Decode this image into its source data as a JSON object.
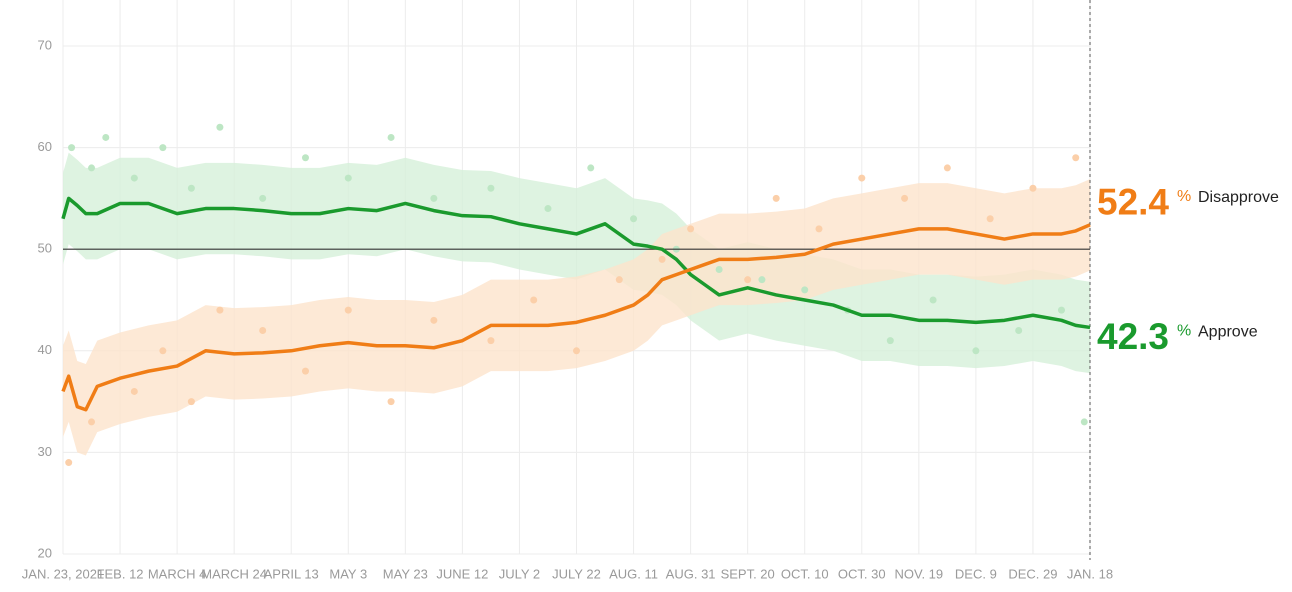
{
  "chart_data": {
    "type": "line",
    "x": [
      0,
      2,
      5,
      8,
      12,
      20,
      30,
      40,
      50,
      60,
      70,
      80,
      90,
      100,
      110,
      120,
      130,
      140,
      150,
      160,
      170,
      180,
      190,
      200,
      205,
      210,
      215,
      220,
      225,
      230,
      240,
      250,
      260,
      270,
      280,
      290,
      300,
      310,
      320,
      330,
      340,
      350,
      355,
      360
    ],
    "series": [
      {
        "name": "Approve",
        "color": "#1a9a2d",
        "band_color": "#d6f0da",
        "poll_color": "#bde6c4",
        "values": [
          53,
          55,
          54.3,
          53.5,
          53.5,
          54.5,
          54.5,
          53.5,
          54,
          54,
          53.8,
          53.5,
          53.5,
          54,
          53.8,
          54.5,
          53.8,
          53.3,
          53.2,
          52.5,
          52,
          51.5,
          52.5,
          50.5,
          50.3,
          50,
          49,
          47.5,
          46.5,
          45.5,
          46.2,
          45.5,
          45,
          44.5,
          43.5,
          43.5,
          43,
          43,
          42.8,
          43,
          43.5,
          43,
          42.5,
          42.3
        ],
        "upper": [
          57.5,
          59.5,
          58.8,
          58,
          58,
          59,
          59,
          58,
          58.5,
          58.5,
          58.3,
          58,
          58,
          58.5,
          58.3,
          59,
          58.3,
          57.8,
          57.7,
          57,
          56.5,
          56,
          57,
          55,
          54.8,
          54.5,
          53.5,
          52,
          51,
          50,
          50.7,
          50,
          49.5,
          49,
          48,
          48,
          47.5,
          47.5,
          47.3,
          47.5,
          48,
          47.5,
          47,
          46.8
        ],
        "lower": [
          48.5,
          50.5,
          49.8,
          49,
          49,
          50,
          50,
          49,
          49.5,
          49.5,
          49.3,
          49,
          49,
          49.5,
          49.3,
          50,
          49.3,
          48.8,
          48.7,
          48,
          47.5,
          47,
          48,
          46,
          45.8,
          45.5,
          44.5,
          43,
          42,
          41,
          41.7,
          41,
          40.5,
          40,
          39,
          39,
          38.5,
          38.5,
          38.3,
          38.5,
          39,
          38.5,
          38,
          37.8
        ],
        "polls": {
          "x": [
            3,
            10,
            15,
            25,
            35,
            45,
            55,
            70,
            85,
            100,
            115,
            130,
            150,
            170,
            185,
            200,
            215,
            230,
            245,
            260,
            275,
            290,
            305,
            320,
            335,
            350,
            358
          ],
          "values": [
            60,
            58,
            61,
            57,
            60,
            56,
            62,
            55,
            59,
            57,
            61,
            55,
            56,
            54,
            58,
            53,
            50,
            48,
            47,
            46,
            44,
            41,
            45,
            40,
            42,
            44,
            33
          ]
        }
      },
      {
        "name": "Disapprove",
        "color": "#f07d16",
        "band_color": "#fde3cc",
        "poll_color": "#fbcfa9",
        "values": [
          36,
          37.5,
          34.5,
          34.2,
          36.5,
          37.3,
          38,
          38.5,
          40,
          39.7,
          39.8,
          40,
          40.5,
          40.8,
          40.5,
          40.5,
          40.3,
          41,
          42.5,
          42.5,
          42.5,
          42.8,
          43.5,
          44.5,
          45.5,
          47,
          47.5,
          48,
          48.5,
          49,
          49,
          49.2,
          49.5,
          50.5,
          51,
          51.5,
          52,
          52,
          51.5,
          51,
          51.5,
          51.5,
          51.8,
          52.4
        ],
        "upper": [
          40.5,
          42,
          39,
          38.7,
          41,
          41.8,
          42.5,
          43,
          44.5,
          44.2,
          44.3,
          44.5,
          45,
          45.3,
          45,
          45,
          44.8,
          45.5,
          47,
          47,
          47,
          47.3,
          48,
          49,
          50,
          51.5,
          52,
          52.5,
          53,
          53.5,
          53.5,
          53.7,
          54,
          55,
          55.5,
          56,
          56.5,
          56.5,
          56,
          55.5,
          56,
          56,
          56.3,
          56.9
        ],
        "lower": [
          31.5,
          33,
          30,
          29.7,
          32,
          32.8,
          33.5,
          34,
          35.5,
          35.2,
          35.3,
          35.5,
          36,
          36.3,
          36,
          36,
          35.8,
          36.5,
          38,
          38,
          38,
          38.3,
          39,
          40,
          41,
          42.5,
          43,
          43.5,
          44,
          44.5,
          44.5,
          44.7,
          45,
          46,
          46.5,
          47,
          47.5,
          47.5,
          47,
          46.5,
          47,
          47,
          47.3,
          47.9
        ],
        "polls": {
          "x": [
            2,
            10,
            25,
            35,
            45,
            55,
            70,
            85,
            100,
            115,
            130,
            150,
            165,
            180,
            195,
            210,
            220,
            240,
            250,
            265,
            280,
            295,
            310,
            325,
            340,
            355
          ],
          "values": [
            29,
            33,
            36,
            40,
            35,
            44,
            42,
            38,
            44,
            35,
            43,
            41,
            45,
            40,
            47,
            49,
            52,
            47,
            55,
            52,
            57,
            55,
            58,
            53,
            56,
            59
          ]
        }
      }
    ],
    "unit": "%",
    "xlim": [
      0,
      360
    ],
    "xticks": [
      {
        "value": 0,
        "label": "JAN. 23, 2021"
      },
      {
        "value": 20,
        "label": "FEB. 12"
      },
      {
        "value": 40,
        "label": "MARCH 4"
      },
      {
        "value": 60,
        "label": "MARCH 24"
      },
      {
        "value": 80,
        "label": "APRIL 13"
      },
      {
        "value": 100,
        "label": "MAY 3"
      },
      {
        "value": 120,
        "label": "MAY 23"
      },
      {
        "value": 140,
        "label": "JUNE 12"
      },
      {
        "value": 160,
        "label": "JULY 2"
      },
      {
        "value": 180,
        "label": "JULY 22"
      },
      {
        "value": 200,
        "label": "AUG. 11"
      },
      {
        "value": 220,
        "label": "AUG. 31"
      },
      {
        "value": 240,
        "label": "SEPT. 20"
      },
      {
        "value": 260,
        "label": "OCT. 10"
      },
      {
        "value": 280,
        "label": "OCT. 30"
      },
      {
        "value": 300,
        "label": "NOV. 19"
      },
      {
        "value": 320,
        "label": "DEC. 9"
      },
      {
        "value": 340,
        "label": "DEC. 29"
      },
      {
        "value": 360,
        "label": "JAN. 18"
      }
    ],
    "ylim": [
      20,
      70
    ],
    "yticks": [
      20,
      30,
      40,
      50,
      60,
      70
    ],
    "reference_y": 50,
    "current_x": 360,
    "grid": true
  }
}
